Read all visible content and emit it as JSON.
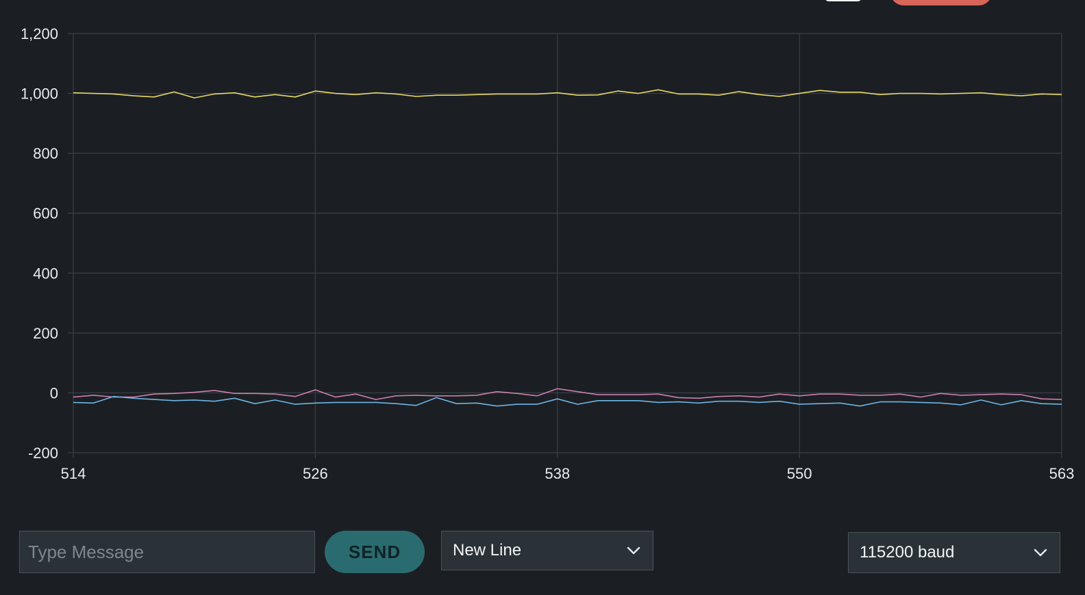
{
  "colors": {
    "background": "#1b1f23",
    "grid": "#3a4146",
    "series_1": "#e9d86a",
    "series_2": "#cd7fad",
    "series_3": "#6fb6e6",
    "send_button": "#2a6b70",
    "stop_button": "#d8655a"
  },
  "chart_data": {
    "type": "line",
    "ylim": [
      -200,
      1200
    ],
    "xlim": [
      514,
      563
    ],
    "y_ticks": [
      "1,200",
      "1,000",
      "800",
      "600",
      "400",
      "200",
      "0",
      "-200"
    ],
    "y_tick_values": [
      1200,
      1000,
      800,
      600,
      400,
      200,
      0,
      -200
    ],
    "x_ticks": [
      "514",
      "526",
      "538",
      "550",
      "563"
    ],
    "x_tick_values": [
      514,
      526,
      538,
      550,
      563
    ],
    "grid": true,
    "x": [
      514,
      515,
      516,
      517,
      518,
      519,
      520,
      521,
      522,
      523,
      524,
      525,
      526,
      527,
      528,
      529,
      530,
      531,
      532,
      533,
      534,
      535,
      536,
      537,
      538,
      539,
      540,
      541,
      542,
      543,
      544,
      545,
      546,
      547,
      548,
      549,
      550,
      551,
      552,
      553,
      554,
      555,
      556,
      557,
      558,
      559,
      560,
      561,
      562,
      563
    ],
    "series": [
      {
        "color": "#e9d86a",
        "values": [
          1002,
          1000,
          998,
          992,
          988,
          1005,
          985,
          998,
          1002,
          988,
          996,
          988,
          1008,
          1000,
          996,
          1002,
          998,
          990,
          994,
          994,
          996,
          998,
          998,
          998,
          1002,
          994,
          995,
          1008,
          1000,
          1012,
          998,
          998,
          994,
          1006,
          996,
          990,
          1000,
          1010,
          1004,
          1004,
          996,
          1000,
          1000,
          998,
          1000,
          1002,
          996,
          992,
          998,
          996
        ]
      },
      {
        "color": "#cd7fad",
        "values": [
          -14,
          -8,
          -14,
          -14,
          -4,
          -2,
          2,
          8,
          -2,
          -2,
          -4,
          -12,
          10,
          -14,
          -4,
          -22,
          -10,
          -8,
          -10,
          -10,
          -8,
          4,
          -2,
          -10,
          14,
          4,
          -6,
          -6,
          -6,
          -4,
          -16,
          -18,
          -12,
          -10,
          -14,
          -4,
          -10,
          -4,
          -4,
          -8,
          -8,
          -4,
          -14,
          -2,
          -8,
          -6,
          -4,
          -6,
          -20,
          -22
        ]
      },
      {
        "color": "#6fb6e6",
        "values": [
          -32,
          -34,
          -12,
          -18,
          -22,
          -26,
          -24,
          -28,
          -18,
          -36,
          -24,
          -38,
          -34,
          -32,
          -32,
          -32,
          -36,
          -42,
          -16,
          -36,
          -34,
          -44,
          -38,
          -38,
          -20,
          -38,
          -26,
          -26,
          -26,
          -32,
          -30,
          -34,
          -28,
          -28,
          -32,
          -28,
          -38,
          -36,
          -34,
          -44,
          -30,
          -30,
          -32,
          -34,
          -40,
          -24,
          -40,
          -26,
          -36,
          -38
        ]
      }
    ]
  },
  "toolbar": {
    "message_placeholder": "Type Message",
    "send_label": "SEND",
    "line_ending": "New Line",
    "baud_rate": "115200 baud"
  },
  "icons": {
    "line_ending_chevron": "chevron-down-icon",
    "baud_chevron": "chevron-down-icon"
  }
}
